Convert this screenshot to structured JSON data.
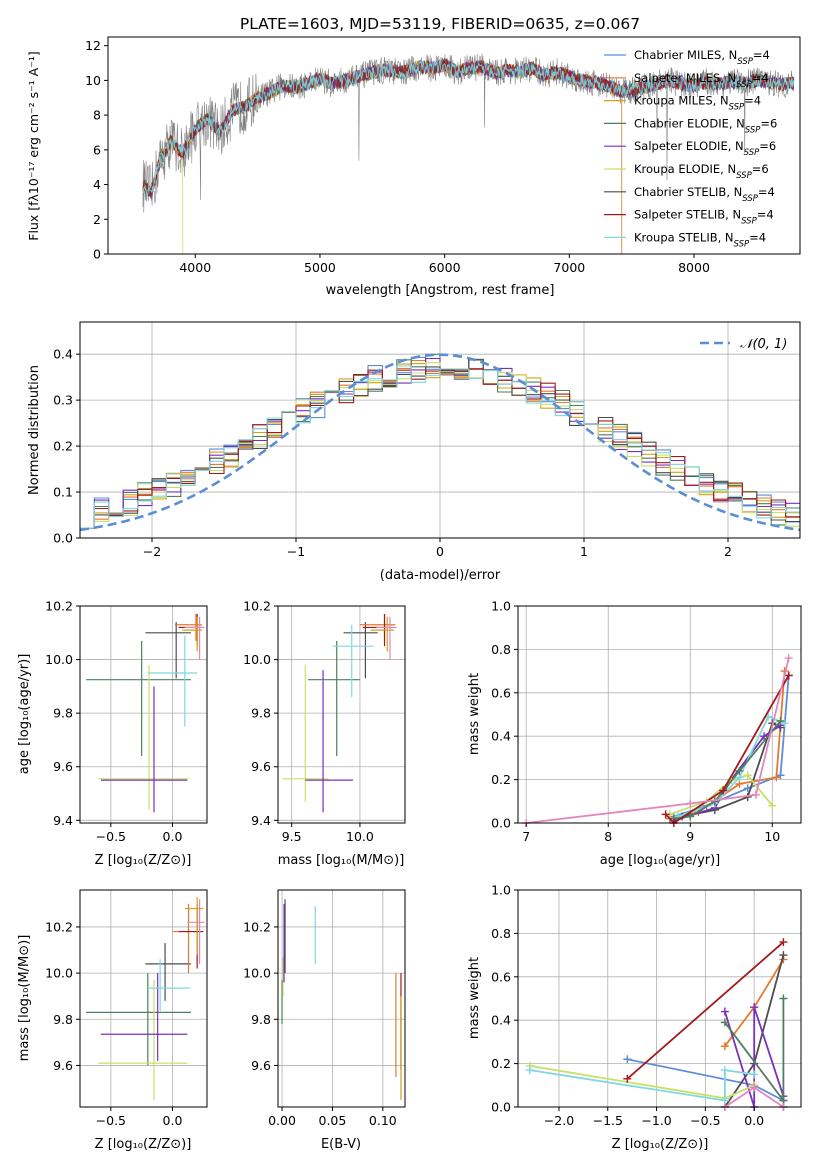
{
  "figure": {
    "title": "PLATE=1603, MJD=53119, FIBERID=0635, z=0.067"
  },
  "chart_data": [
    {
      "id": "spectrum",
      "type": "line",
      "xlabel": "wavelength [Angstrom, rest frame]",
      "ylabel": "Flux [fλ10⁻¹⁷ erg cm⁻² s⁻¹ A⁻¹]",
      "xlim": [
        3300,
        8850
      ],
      "ylim": [
        0,
        12.5
      ],
      "xticks": [
        4000,
        5000,
        6000,
        7000,
        8000
      ],
      "yticks": [
        0,
        2,
        4,
        6,
        8,
        10,
        12
      ],
      "legend_position": "top-right",
      "data_x": [
        3580,
        3650,
        3700,
        3800,
        3900,
        4000,
        4100,
        4200,
        4300,
        4400,
        4500,
        4600,
        4700,
        4800,
        4900,
        5000,
        5100,
        5200,
        5300,
        5400,
        5500,
        5600,
        5700,
        5800,
        5900,
        6000,
        6100,
        6200,
        6300,
        6400,
        6500,
        6600,
        6700,
        6800,
        6900,
        7000,
        7100,
        7200,
        7300,
        7400,
        7500,
        7600,
        7700,
        7800,
        7900,
        8000,
        8100,
        8200,
        8300,
        8400,
        8500,
        8600,
        8700,
        8800
      ],
      "data_y": [
        4.0,
        3.5,
        5.0,
        6.5,
        5.8,
        7.2,
        7.8,
        7.0,
        8.3,
        8.5,
        9.0,
        9.3,
        9.7,
        9.6,
        9.8,
        10.1,
        9.8,
        10.0,
        10.2,
        10.4,
        10.6,
        10.5,
        10.5,
        10.8,
        10.7,
        10.9,
        10.5,
        10.7,
        10.8,
        10.4,
        10.6,
        10.5,
        10.7,
        10.3,
        10.5,
        10.2,
        10.0,
        9.9,
        9.7,
        9.4,
        9.4,
        9.6,
        9.8,
        10.0,
        9.8,
        9.7,
        9.9,
        9.8,
        9.9,
        9.8,
        10.0,
        9.9,
        9.8,
        9.8
      ],
      "model_names": [
        "Chabrier MILES, N_SSP=4",
        "Salpeter MILES, N_SSP=4",
        "Kroupa MILES, N_SSP=4",
        "Chabrier ELODIE, N_SSP=6",
        "Salpeter ELODIE, N_SSP=6",
        "Kroupa ELODIE, N_SSP=6",
        "Chabrier STELIB, N_SSP=4",
        "Salpeter STELIB, N_SSP=4",
        "Kroupa STELIB, N_SSP=4"
      ],
      "legend": [
        {
          "label": "Chabrier MILES, N",
          "sub": "SSP",
          "eq": "=4"
        },
        {
          "label": "Salpeter MILES, N",
          "sub": "SSP",
          "eq": "=4"
        },
        {
          "label": "Kroupa MILES, N",
          "sub": "SSP",
          "eq": "=4"
        },
        {
          "label": "Chabrier ELODIE, N",
          "sub": "SSP",
          "eq": "=6"
        },
        {
          "label": "Salpeter ELODIE, N",
          "sub": "SSP",
          "eq": "=6"
        },
        {
          "label": "Kroupa ELODIE, N",
          "sub": "SSP",
          "eq": "=6"
        },
        {
          "label": "Chabrier STELIB, N",
          "sub": "SSP",
          "eq": "=4"
        },
        {
          "label": "Salpeter STELIB, N",
          "sub": "SSP",
          "eq": "=4"
        },
        {
          "label": "Kroupa STELIB, N",
          "sub": "SSP",
          "eq": "=4"
        }
      ]
    },
    {
      "id": "residuals",
      "type": "histogram",
      "xlabel": "(data-model)/error",
      "ylabel": "Normed distribution",
      "xlim": [
        -2.5,
        2.5
      ],
      "ylim": [
        0,
        0.47
      ],
      "xticks": [
        -2,
        -1,
        0,
        1,
        2
      ],
      "yticks": [
        0.0,
        0.1,
        0.2,
        0.3,
        0.4
      ],
      "grid": true,
      "bin_width": 0.1,
      "legend_label": "𝒩(0, 1)",
      "legend_position": "top-right",
      "reference_curve": {
        "name": "𝒩(0, 1)",
        "mean": 0,
        "sigma": 1,
        "style": "dashed"
      }
    },
    {
      "id": "age_vs_Z",
      "type": "scatter",
      "xlabel": "Z [log₁₀(Z/Z⊙)]",
      "ylabel": "age  [log₁₀(age/yr)]",
      "xlim": [
        -0.75,
        0.28
      ],
      "ylim": [
        9.39,
        10.2
      ],
      "xticks": [
        -0.5,
        0.0
      ],
      "yticks": [
        9.4,
        9.6,
        9.8,
        10.0,
        10.2
      ],
      "grid": true,
      "points": [
        {
          "x": -0.25,
          "xmin": -0.7,
          "xmax": 0.15,
          "y": 9.925,
          "ymin": 9.64,
          "ymax": 10.07
        },
        {
          "x": -0.19,
          "xmin": -0.6,
          "xmax": 0.13,
          "y": 9.555,
          "ymin": 9.44,
          "ymax": 9.98
        },
        {
          "x": -0.15,
          "xmin": -0.58,
          "xmax": 0.12,
          "y": 9.55,
          "ymin": 9.43,
          "ymax": 9.9
        },
        {
          "x": 0.03,
          "xmin": -0.22,
          "xmax": 0.15,
          "y": 10.1,
          "ymin": 9.93,
          "ymax": 10.14
        },
        {
          "x": 0.1,
          "xmin": -0.2,
          "xmax": 0.2,
          "y": 9.95,
          "ymin": 9.75,
          "ymax": 10.09
        },
        {
          "x": 0.19,
          "xmin": 0.02,
          "xmax": 0.24,
          "y": 10.13,
          "ymin": 10.07,
          "ymax": 10.17
        },
        {
          "x": 0.2,
          "xmin": 0.05,
          "xmax": 0.25,
          "y": 10.12,
          "ymin": 10.05,
          "ymax": 10.17
        },
        {
          "x": 0.2,
          "xmin": 0.08,
          "xmax": 0.24,
          "y": 10.11,
          "ymin": 10.03,
          "ymax": 10.16
        },
        {
          "x": 0.22,
          "xmin": 0.1,
          "xmax": 0.26,
          "y": 10.12,
          "ymin": 10.0,
          "ymax": 10.16
        }
      ]
    },
    {
      "id": "age_vs_mass",
      "type": "scatter",
      "xlabel": "mass [log₁₀(M/M⊙)]",
      "ylabel": "",
      "xlim": [
        9.4,
        10.33
      ],
      "ylim": [
        9.39,
        10.2
      ],
      "xticks": [
        9.5,
        10.0
      ],
      "yticks": [
        9.4,
        9.6,
        9.8,
        10.0,
        10.2
      ],
      "grid": true,
      "points": [
        {
          "x": 9.83,
          "xmin": 9.62,
          "xmax": 10.0,
          "y": 9.925,
          "ymin": 9.64,
          "ymax": 10.07
        },
        {
          "x": 9.6,
          "xmin": 9.43,
          "xmax": 9.77,
          "y": 9.555,
          "ymin": 9.47,
          "ymax": 9.98
        },
        {
          "x": 9.73,
          "xmin": 9.6,
          "xmax": 9.95,
          "y": 9.55,
          "ymin": 9.43,
          "ymax": 9.96
        },
        {
          "x": 10.04,
          "xmin": 9.88,
          "xmax": 10.13,
          "y": 10.1,
          "ymin": 9.93,
          "ymax": 10.14
        },
        {
          "x": 9.94,
          "xmin": 9.8,
          "xmax": 10.1,
          "y": 10.05,
          "ymin": 9.86,
          "ymax": 10.13
        },
        {
          "x": 10.18,
          "xmin": 10.0,
          "xmax": 10.26,
          "y": 10.13,
          "ymin": 10.07,
          "ymax": 10.17
        },
        {
          "x": 10.18,
          "xmin": 10.02,
          "xmax": 10.25,
          "y": 10.12,
          "ymin": 10.05,
          "ymax": 10.17
        },
        {
          "x": 10.2,
          "xmin": 10.08,
          "xmax": 10.25,
          "y": 10.11,
          "ymin": 10.03,
          "ymax": 10.16
        },
        {
          "x": 10.22,
          "xmin": 10.12,
          "xmax": 10.27,
          "y": 10.12,
          "ymin": 10.0,
          "ymax": 10.16
        }
      ]
    },
    {
      "id": "weight_vs_age",
      "type": "line",
      "xlabel": "age  [log₁₀(age/yr)]",
      "ylabel": "mass weight",
      "xlim": [
        6.9,
        10.35
      ],
      "ylim": [
        0,
        1.0
      ],
      "xticks": [
        7,
        8,
        9,
        10
      ],
      "yticks": [
        0.0,
        0.2,
        0.4,
        0.6,
        0.8,
        1.0
      ],
      "grid": true,
      "series": [
        {
          "x": [
            8.8,
            9.2,
            9.7,
            10.1,
            10.2
          ],
          "y": [
            0.03,
            0.08,
            0.16,
            0.22,
            0.68
          ]
        },
        {
          "x": [
            8.75,
            9.1,
            9.6,
            10.05,
            10.15
          ],
          "y": [
            0.02,
            0.05,
            0.18,
            0.21,
            0.7
          ]
        },
        {
          "x": [
            8.9,
            9.3,
            9.7,
            10.0,
            10.1
          ],
          "y": [
            0.03,
            0.06,
            0.12,
            0.46,
            0.44
          ]
        },
        {
          "x": [
            8.8,
            9.3,
            9.5,
            9.9,
            10.1
          ],
          "y": [
            0.01,
            0.07,
            0.2,
            0.4,
            0.45
          ]
        },
        {
          "x": [
            8.75,
            9.2,
            9.5,
            9.7,
            10.0
          ],
          "y": [
            0.04,
            0.1,
            0.2,
            0.22,
            0.08
          ]
        },
        {
          "x": [
            8.85,
            9.3,
            9.6,
            9.95,
            10.15
          ],
          "y": [
            0.03,
            0.09,
            0.21,
            0.49,
            0.46
          ]
        },
        {
          "x": [
            8.8,
            9.0,
            9.3,
            9.6,
            10.1
          ],
          "y": [
            0.02,
            0.03,
            0.1,
            0.24,
            0.47
          ]
        },
        {
          "x": [
            8.7,
            8.8,
            9.4,
            10.2
          ],
          "y": [
            0.04,
            0.0,
            0.15,
            0.68
          ]
        },
        {
          "x": [
            7.0,
            9.0,
            9.8,
            10.2
          ],
          "y": [
            0.0,
            0.09,
            0.13,
            0.76
          ]
        }
      ]
    },
    {
      "id": "mass_vs_Z",
      "type": "scatter",
      "xlabel": "Z [log₁₀(Z/Z⊙)]",
      "ylabel": "mass [log₁₀(M/M⊙)]",
      "xlim": [
        -0.75,
        0.28
      ],
      "ylim": [
        9.42,
        10.36
      ],
      "xticks": [
        -0.5,
        0.0
      ],
      "yticks": [
        9.6,
        9.8,
        10.0,
        10.2
      ],
      "grid": true,
      "points": [
        {
          "x": -0.2,
          "xmin": -0.7,
          "xmax": 0.15,
          "y": 9.83,
          "ymin": 9.6,
          "ymax": 10.0
        },
        {
          "x": -0.15,
          "xmin": -0.6,
          "xmax": 0.12,
          "y": 9.61,
          "ymin": 9.45,
          "ymax": 9.97
        },
        {
          "x": -0.12,
          "xmin": -0.58,
          "xmax": 0.12,
          "y": 9.735,
          "ymin": 9.62,
          "ymax": 10.0
        },
        {
          "x": -0.06,
          "xmin": -0.22,
          "xmax": 0.15,
          "y": 10.04,
          "ymin": 9.88,
          "ymax": 10.13
        },
        {
          "x": -0.1,
          "xmin": -0.2,
          "xmax": 0.14,
          "y": 9.935,
          "ymin": 9.83,
          "ymax": 10.06
        },
        {
          "x": 0.13,
          "xmin": 0.0,
          "xmax": 0.22,
          "y": 10.18,
          "ymin": 10.0,
          "ymax": 10.3
        },
        {
          "x": 0.2,
          "xmin": 0.05,
          "xmax": 0.25,
          "y": 10.18,
          "ymin": 10.02,
          "ymax": 10.3
        },
        {
          "x": 0.2,
          "xmin": 0.1,
          "xmax": 0.25,
          "y": 10.28,
          "ymin": 10.08,
          "ymax": 10.33
        },
        {
          "x": 0.22,
          "xmin": 0.12,
          "xmax": 0.26,
          "y": 10.22,
          "ymin": 10.04,
          "ymax": 10.32
        }
      ]
    },
    {
      "id": "mass_vs_ebv",
      "type": "scatter",
      "xlabel": "E(B-V)",
      "ylabel": "",
      "xlim": [
        -0.004,
        0.122
      ],
      "ylim": [
        9.42,
        10.36
      ],
      "xticks": [
        0.0,
        0.05,
        0.1
      ],
      "yticks": [
        9.6,
        9.8,
        10.0,
        10.2
      ],
      "grid": true,
      "points": [
        {
          "x": 0.0,
          "ymin": 9.78,
          "ymax": 9.97
        },
        {
          "x": 0.001,
          "ymin": 9.9,
          "ymax": 10.07
        },
        {
          "x": 0.002,
          "ymin": 9.96,
          "ymax": 10.3
        },
        {
          "x": 0.003,
          "ymin": 10.0,
          "ymax": 10.32
        },
        {
          "x": 0.033,
          "ymin": 10.04,
          "ymax": 10.29
        },
        {
          "x": 0.113,
          "ymin": 9.55,
          "ymax": 10.0
        },
        {
          "x": 0.118,
          "ymin": 9.58,
          "ymax": 10.0
        },
        {
          "x": 0.118,
          "ymin": 9.45,
          "ymax": 9.9
        }
      ]
    },
    {
      "id": "weight_vs_Z",
      "type": "line",
      "xlabel": "Z [log₁₀(Z/Z⊙)]",
      "ylabel": "mass weight",
      "xlim": [
        -2.42,
        0.48
      ],
      "ylim": [
        0,
        1.0
      ],
      "xticks": [
        -2.0,
        -1.5,
        -1.0,
        -0.5,
        0.0
      ],
      "yticks": [
        0.0,
        0.2,
        0.4,
        0.6,
        0.8,
        1.0
      ],
      "grid": true,
      "series": [
        {
          "x": [
            -1.3,
            0.0,
            0.3,
            0.3
          ],
          "y": [
            0.22,
            0.1,
            0.03,
            0.0
          ]
        },
        {
          "x": [
            -0.3,
            0.0,
            0.3
          ],
          "y": [
            0.28,
            0.46,
            0.68
          ]
        },
        {
          "x": [
            -0.3,
            0.0,
            0.3
          ],
          "y": [
            0.0,
            0.2,
            0.7
          ]
        },
        {
          "x": [
            -0.3,
            0.0,
            0.0,
            0.3
          ],
          "y": [
            0.44,
            0.0,
            0.46,
            0.05
          ]
        },
        {
          "x": [
            -2.3,
            -0.3,
            0.0
          ],
          "y": [
            0.19,
            0.04,
            0.1
          ]
        },
        {
          "x": [
            -2.3,
            -0.3,
            -0.3,
            0.0
          ],
          "y": [
            0.17,
            0.03,
            0.17,
            0.15
          ]
        },
        {
          "x": [
            -0.3,
            0.3,
            0.3
          ],
          "y": [
            0.39,
            0.03,
            0.5
          ]
        },
        {
          "x": [
            -1.3,
            0.3
          ],
          "y": [
            0.13,
            0.76
          ]
        },
        {
          "x": [
            -0.3,
            0.0,
            0.3
          ],
          "y": [
            0.0,
            0.09,
            0.0
          ]
        }
      ]
    }
  ],
  "palette": [
    "#5b8ed6",
    "#e6792e",
    "#d4a017",
    "#4f7f5e",
    "#7b2fbf",
    "#c8e06a",
    "#4d4d4d",
    "#a31a1a",
    "#7fd8de"
  ],
  "pink": "#e386bd",
  "gauss_color": "#5b8ed6",
  "data_color": "#808080"
}
